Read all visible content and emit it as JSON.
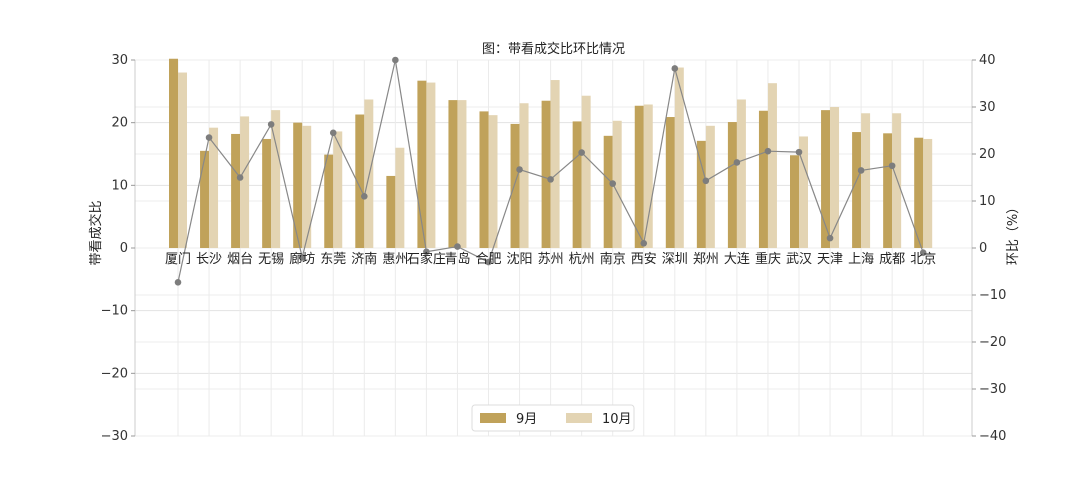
{
  "chart_data": {
    "type": "bar",
    "title": "图：带看成交比环比情况",
    "ylabel": "带看成交比",
    "y2label": "环比（%）",
    "ylim": [
      -30,
      30
    ],
    "y2lim": [
      -40,
      40
    ],
    "yticks": [
      -30,
      -20,
      -10,
      0,
      10,
      20,
      30
    ],
    "y2ticks": [
      -40,
      -30,
      -20,
      -10,
      0,
      10,
      20,
      30,
      40
    ],
    "grid": true,
    "legend_position": "bottom-center",
    "categories": [
      "厦门",
      "长沙",
      "烟台",
      "无锡",
      "廊坊",
      "东莞",
      "济南",
      "惠州",
      "石家庄",
      "青岛",
      "合肥",
      "沈阳",
      "苏州",
      "杭州",
      "南京",
      "西安",
      "深圳",
      "郑州",
      "大连",
      "重庆",
      "武汉",
      "天津",
      "上海",
      "成都",
      "北京"
    ],
    "series": [
      {
        "name": "9月",
        "axis": "left",
        "color": "#C0A25A",
        "values": [
          30.2,
          15.5,
          18.2,
          17.4,
          20.0,
          14.9,
          21.3,
          11.5,
          26.7,
          23.6,
          21.8,
          19.8,
          23.5,
          20.2,
          17.9,
          22.7,
          20.9,
          17.1,
          20.1,
          21.9,
          14.8,
          22.0,
          18.5,
          18.3,
          17.6
        ]
      },
      {
        "name": "10月",
        "axis": "left",
        "color": "#E3D4B3",
        "values": [
          28.0,
          19.2,
          21.0,
          22.0,
          19.5,
          18.6,
          23.7,
          16.0,
          26.4,
          23.6,
          21.2,
          23.1,
          26.8,
          24.3,
          20.3,
          22.9,
          28.8,
          19.5,
          23.7,
          26.3,
          17.8,
          22.5,
          21.5,
          21.5,
          17.4
        ]
      },
      {
        "name": "环比",
        "axis": "right",
        "type": "line",
        "color": "#888888",
        "values": [
          -7.3,
          23.5,
          15.0,
          26.3,
          -2.0,
          24.5,
          11.0,
          40.0,
          -0.8,
          0.3,
          -3.0,
          16.7,
          14.6,
          20.3,
          13.7,
          1.0,
          38.2,
          14.3,
          18.2,
          20.6,
          20.4,
          2.1,
          16.5,
          17.5,
          -1.0
        ]
      }
    ]
  }
}
